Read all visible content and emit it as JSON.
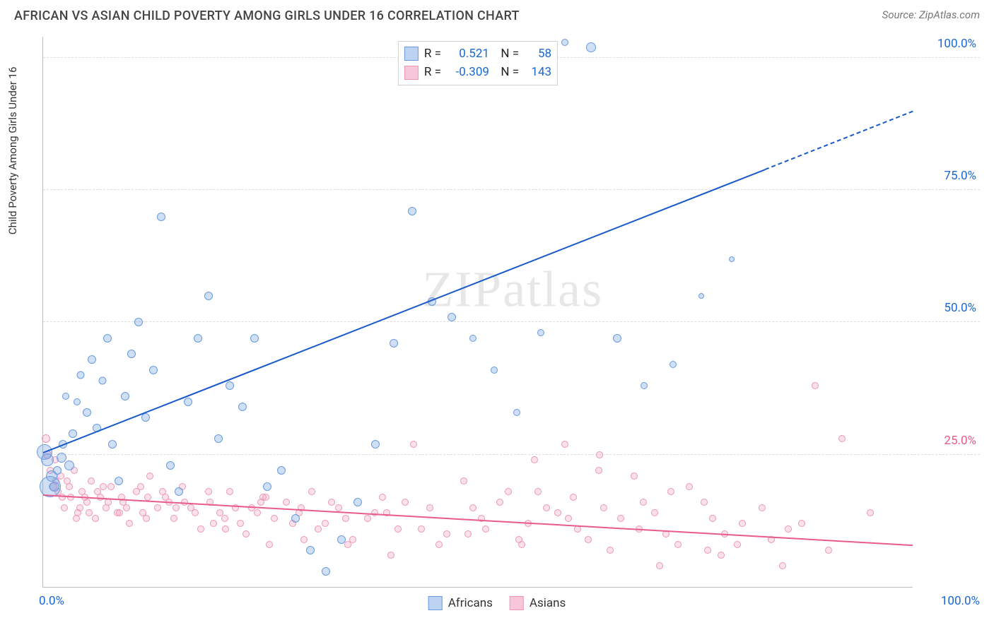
{
  "title": "AFRICAN VS ASIAN CHILD POVERTY AMONG GIRLS UNDER 16 CORRELATION CHART",
  "source": "Source: ZipAtlas.com",
  "ylabel": "Child Poverty Among Girls Under 16",
  "watermark": "ZIPatlas",
  "xlim": [
    0,
    100
  ],
  "ylim": [
    0,
    104
  ],
  "xticks": [
    {
      "v": 0,
      "label": "0.0%",
      "color": "#1967d2"
    },
    {
      "v": 100,
      "label": "100.0%",
      "color": "#1967d2"
    }
  ],
  "yticks": [
    {
      "v": 25,
      "label": "25.0%",
      "color": "#e85b8b"
    },
    {
      "v": 50,
      "label": "50.0%",
      "color": "#1967d2"
    },
    {
      "v": 75,
      "label": "75.0%",
      "color": "#1967d2"
    },
    {
      "v": 100,
      "label": "100.0%",
      "color": "#1967d2"
    }
  ],
  "grid_color": "#dcdcdc",
  "series": {
    "africans": {
      "label": "Africans",
      "fill": "rgba(118,163,224,0.35)",
      "stroke": "#6a9be0",
      "swatch_fill": "#bcd3f2",
      "swatch_stroke": "#6a9be0",
      "R": "0.521",
      "N": "58",
      "regression": {
        "x1": 0,
        "y1": 25.5,
        "x2": 83,
        "y2": 79,
        "extend_x": 100,
        "extend_y": 90,
        "color": "#1959c9",
        "dash_after": 83
      },
      "points": [
        [
          0.2,
          25.5,
          22
        ],
        [
          0.5,
          24,
          18
        ],
        [
          0.8,
          19,
          30
        ],
        [
          1.0,
          21,
          16
        ],
        [
          1.3,
          19,
          14
        ],
        [
          1.6,
          22,
          12
        ],
        [
          2.1,
          24.5,
          14
        ],
        [
          2.3,
          27,
          12
        ],
        [
          2.6,
          36,
          10
        ],
        [
          3.0,
          23,
          14
        ],
        [
          3.4,
          29,
          12
        ],
        [
          3.9,
          35,
          10
        ],
        [
          4.3,
          40,
          11
        ],
        [
          5.0,
          33,
          12
        ],
        [
          5.6,
          43,
          12
        ],
        [
          6.2,
          30,
          12
        ],
        [
          6.8,
          39,
          11
        ],
        [
          7.4,
          47,
          12
        ],
        [
          8.0,
          27,
          12
        ],
        [
          8.7,
          20,
          12
        ],
        [
          9.4,
          36,
          12
        ],
        [
          10.2,
          44,
          12
        ],
        [
          11.0,
          50,
          12
        ],
        [
          11.8,
          32,
          12
        ],
        [
          12.7,
          41,
          12
        ],
        [
          13.6,
          70,
          12
        ],
        [
          14.6,
          23,
          12
        ],
        [
          15.6,
          18,
          12
        ],
        [
          16.7,
          35,
          12
        ],
        [
          17.8,
          47,
          12
        ],
        [
          19.0,
          55,
          12
        ],
        [
          20.2,
          28,
          12
        ],
        [
          21.5,
          38,
          12
        ],
        [
          22.9,
          34,
          12
        ],
        [
          24.3,
          47,
          12
        ],
        [
          25.8,
          19,
          12
        ],
        [
          27.4,
          22,
          12
        ],
        [
          29.0,
          13,
          12
        ],
        [
          30.7,
          7,
          12
        ],
        [
          32.5,
          3,
          12
        ],
        [
          34.3,
          9,
          12
        ],
        [
          36.2,
          16,
          12
        ],
        [
          38.2,
          27,
          12
        ],
        [
          40.3,
          46,
          12
        ],
        [
          42.4,
          71,
          12
        ],
        [
          44.7,
          54,
          12
        ],
        [
          47.0,
          51,
          12
        ],
        [
          49.4,
          47,
          10
        ],
        [
          51.9,
          41,
          10
        ],
        [
          54.5,
          33,
          10
        ],
        [
          57.2,
          48,
          10
        ],
        [
          60.0,
          103,
          10
        ],
        [
          63.0,
          102,
          14
        ],
        [
          66.0,
          47,
          12
        ],
        [
          69.1,
          38,
          10
        ],
        [
          72.4,
          42,
          10
        ],
        [
          75.7,
          55,
          8
        ],
        [
          79.2,
          62,
          8
        ]
      ]
    },
    "asians": {
      "label": "Asians",
      "fill": "rgba(244,168,194,0.35)",
      "stroke": "#ec96b6",
      "swatch_fill": "#f7c7d9",
      "swatch_stroke": "#ec96b6",
      "R": "-0.309",
      "N": "143",
      "regression": {
        "x1": 0,
        "y1": 17.5,
        "x2": 100,
        "y2": 8,
        "color": "#e85b8b"
      },
      "points": [
        [
          0.3,
          28,
          12
        ],
        [
          0.5,
          25,
          12
        ],
        [
          0.8,
          22,
          10
        ],
        [
          1.1,
          19,
          12
        ],
        [
          1.4,
          24,
          10
        ],
        [
          1.7,
          18,
          10
        ],
        [
          2.0,
          21,
          10
        ],
        [
          2.4,
          15,
          10
        ],
        [
          2.8,
          20,
          10
        ],
        [
          3.2,
          17,
          10
        ],
        [
          3.6,
          22,
          10
        ],
        [
          4.0,
          14,
          10
        ],
        [
          4.5,
          18,
          10
        ],
        [
          5.0,
          16,
          10
        ],
        [
          5.5,
          20,
          10
        ],
        [
          6.0,
          13,
          10
        ],
        [
          6.6,
          17,
          10
        ],
        [
          7.2,
          15,
          10
        ],
        [
          7.8,
          19,
          10
        ],
        [
          8.5,
          14,
          10
        ],
        [
          9.2,
          16,
          10
        ],
        [
          9.9,
          12,
          10
        ],
        [
          10.7,
          18,
          10
        ],
        [
          11.5,
          14,
          10
        ],
        [
          12.3,
          21,
          10
        ],
        [
          13.2,
          15,
          10
        ],
        [
          14.1,
          17,
          10
        ],
        [
          15.0,
          13,
          10
        ],
        [
          16.0,
          19,
          10
        ],
        [
          17.0,
          15,
          10
        ],
        [
          18.1,
          11,
          10
        ],
        [
          19.2,
          16,
          10
        ],
        [
          20.3,
          14,
          10
        ],
        [
          21.5,
          18,
          10
        ],
        [
          22.7,
          12,
          10
        ],
        [
          24.0,
          15,
          10
        ],
        [
          25.3,
          17,
          10
        ],
        [
          26.6,
          13,
          10
        ],
        [
          28.0,
          16,
          10
        ],
        [
          29.4,
          14,
          10
        ],
        [
          30.9,
          18,
          10
        ],
        [
          32.4,
          12,
          10
        ],
        [
          34.0,
          15,
          10
        ],
        [
          35.6,
          9,
          10
        ],
        [
          37.3,
          13,
          10
        ],
        [
          39.0,
          17,
          10
        ],
        [
          40.8,
          11,
          10
        ],
        [
          42.6,
          27,
          10
        ],
        [
          44.5,
          15,
          10
        ],
        [
          46.4,
          10,
          10
        ],
        [
          48.4,
          20,
          10
        ],
        [
          50.4,
          13,
          10
        ],
        [
          52.5,
          16,
          10
        ],
        [
          54.7,
          9,
          10
        ],
        [
          56.9,
          18,
          10
        ],
        [
          59.2,
          14,
          10
        ],
        [
          61.5,
          11,
          10
        ],
        [
          63.9,
          22,
          10
        ],
        [
          66.4,
          13,
          10
        ],
        [
          69.0,
          16,
          10
        ],
        [
          71.6,
          10,
          10
        ],
        [
          74.3,
          19,
          10
        ],
        [
          77.0,
          13,
          10
        ],
        [
          79.8,
          8,
          10
        ],
        [
          82.7,
          15,
          10
        ],
        [
          85.7,
          11,
          10
        ],
        [
          88.8,
          38,
          10
        ],
        [
          91.9,
          28,
          10
        ],
        [
          95.1,
          14,
          10
        ],
        [
          3.8,
          13,
          10
        ],
        [
          5.3,
          14,
          10
        ],
        [
          7.5,
          16,
          10
        ],
        [
          9.6,
          15,
          10
        ],
        [
          11.9,
          13,
          10
        ],
        [
          14.5,
          16,
          10
        ],
        [
          17.5,
          14,
          10
        ],
        [
          20.9,
          13,
          10
        ],
        [
          24.6,
          14,
          10
        ],
        [
          28.7,
          12,
          10
        ],
        [
          33.2,
          16,
          10
        ],
        [
          38.1,
          14,
          10
        ],
        [
          43.5,
          11,
          10
        ],
        [
          49.4,
          15,
          10
        ],
        [
          55.8,
          12,
          10
        ],
        [
          62.7,
          9,
          10
        ],
        [
          70.3,
          14,
          10
        ],
        [
          78.4,
          10,
          10
        ],
        [
          87.2,
          12,
          10
        ],
        [
          2.2,
          17,
          10
        ],
        [
          4.2,
          15,
          10
        ],
        [
          6.3,
          18,
          10
        ],
        [
          8.8,
          14,
          10
        ],
        [
          12.0,
          17,
          10
        ],
        [
          15.3,
          15,
          10
        ],
        [
          19.6,
          12,
          10
        ],
        [
          25.0,
          16,
          10
        ],
        [
          31.6,
          11,
          10
        ],
        [
          39.5,
          14,
          10
        ],
        [
          48.9,
          10,
          10
        ],
        [
          60.4,
          13,
          10
        ],
        [
          65.2,
          7,
          10
        ],
        [
          70.9,
          4,
          10
        ],
        [
          76.4,
          7,
          10
        ],
        [
          1.5,
          20,
          10
        ],
        [
          3.0,
          19,
          10
        ],
        [
          4.8,
          17,
          10
        ],
        [
          6.9,
          19,
          10
        ],
        [
          9.0,
          17,
          10
        ],
        [
          11.2,
          19,
          10
        ],
        [
          13.7,
          18,
          10
        ],
        [
          16.3,
          16,
          10
        ],
        [
          19.0,
          18,
          10
        ],
        [
          22.1,
          15,
          10
        ],
        [
          25.6,
          17,
          10
        ],
        [
          29.7,
          15,
          10
        ],
        [
          34.8,
          13,
          10
        ],
        [
          41.6,
          16,
          10
        ],
        [
          50.9,
          11,
          10
        ],
        [
          45.5,
          8,
          10
        ],
        [
          40.0,
          6,
          10
        ],
        [
          35.0,
          8,
          10
        ],
        [
          30.0,
          9,
          10
        ],
        [
          26.0,
          8,
          10
        ],
        [
          23.3,
          10,
          10
        ],
        [
          21.0,
          11,
          10
        ],
        [
          55.0,
          8,
          10
        ],
        [
          57.9,
          15,
          10
        ],
        [
          61.0,
          17,
          10
        ],
        [
          64.5,
          15,
          10
        ],
        [
          68.5,
          11,
          10
        ],
        [
          73.0,
          8,
          10
        ],
        [
          78.0,
          6,
          10
        ],
        [
          83.7,
          9,
          10
        ],
        [
          90.3,
          7,
          10
        ],
        [
          85.0,
          4,
          10
        ],
        [
          80.4,
          12,
          10
        ],
        [
          76.0,
          16,
          10
        ],
        [
          72.2,
          18,
          10
        ],
        [
          68.0,
          21,
          10
        ],
        [
          64.0,
          25,
          10
        ],
        [
          60.0,
          27,
          10
        ],
        [
          56.5,
          24,
          10
        ],
        [
          53.5,
          18,
          10
        ]
      ]
    }
  },
  "legend_bottom": [
    "africans",
    "asians"
  ]
}
